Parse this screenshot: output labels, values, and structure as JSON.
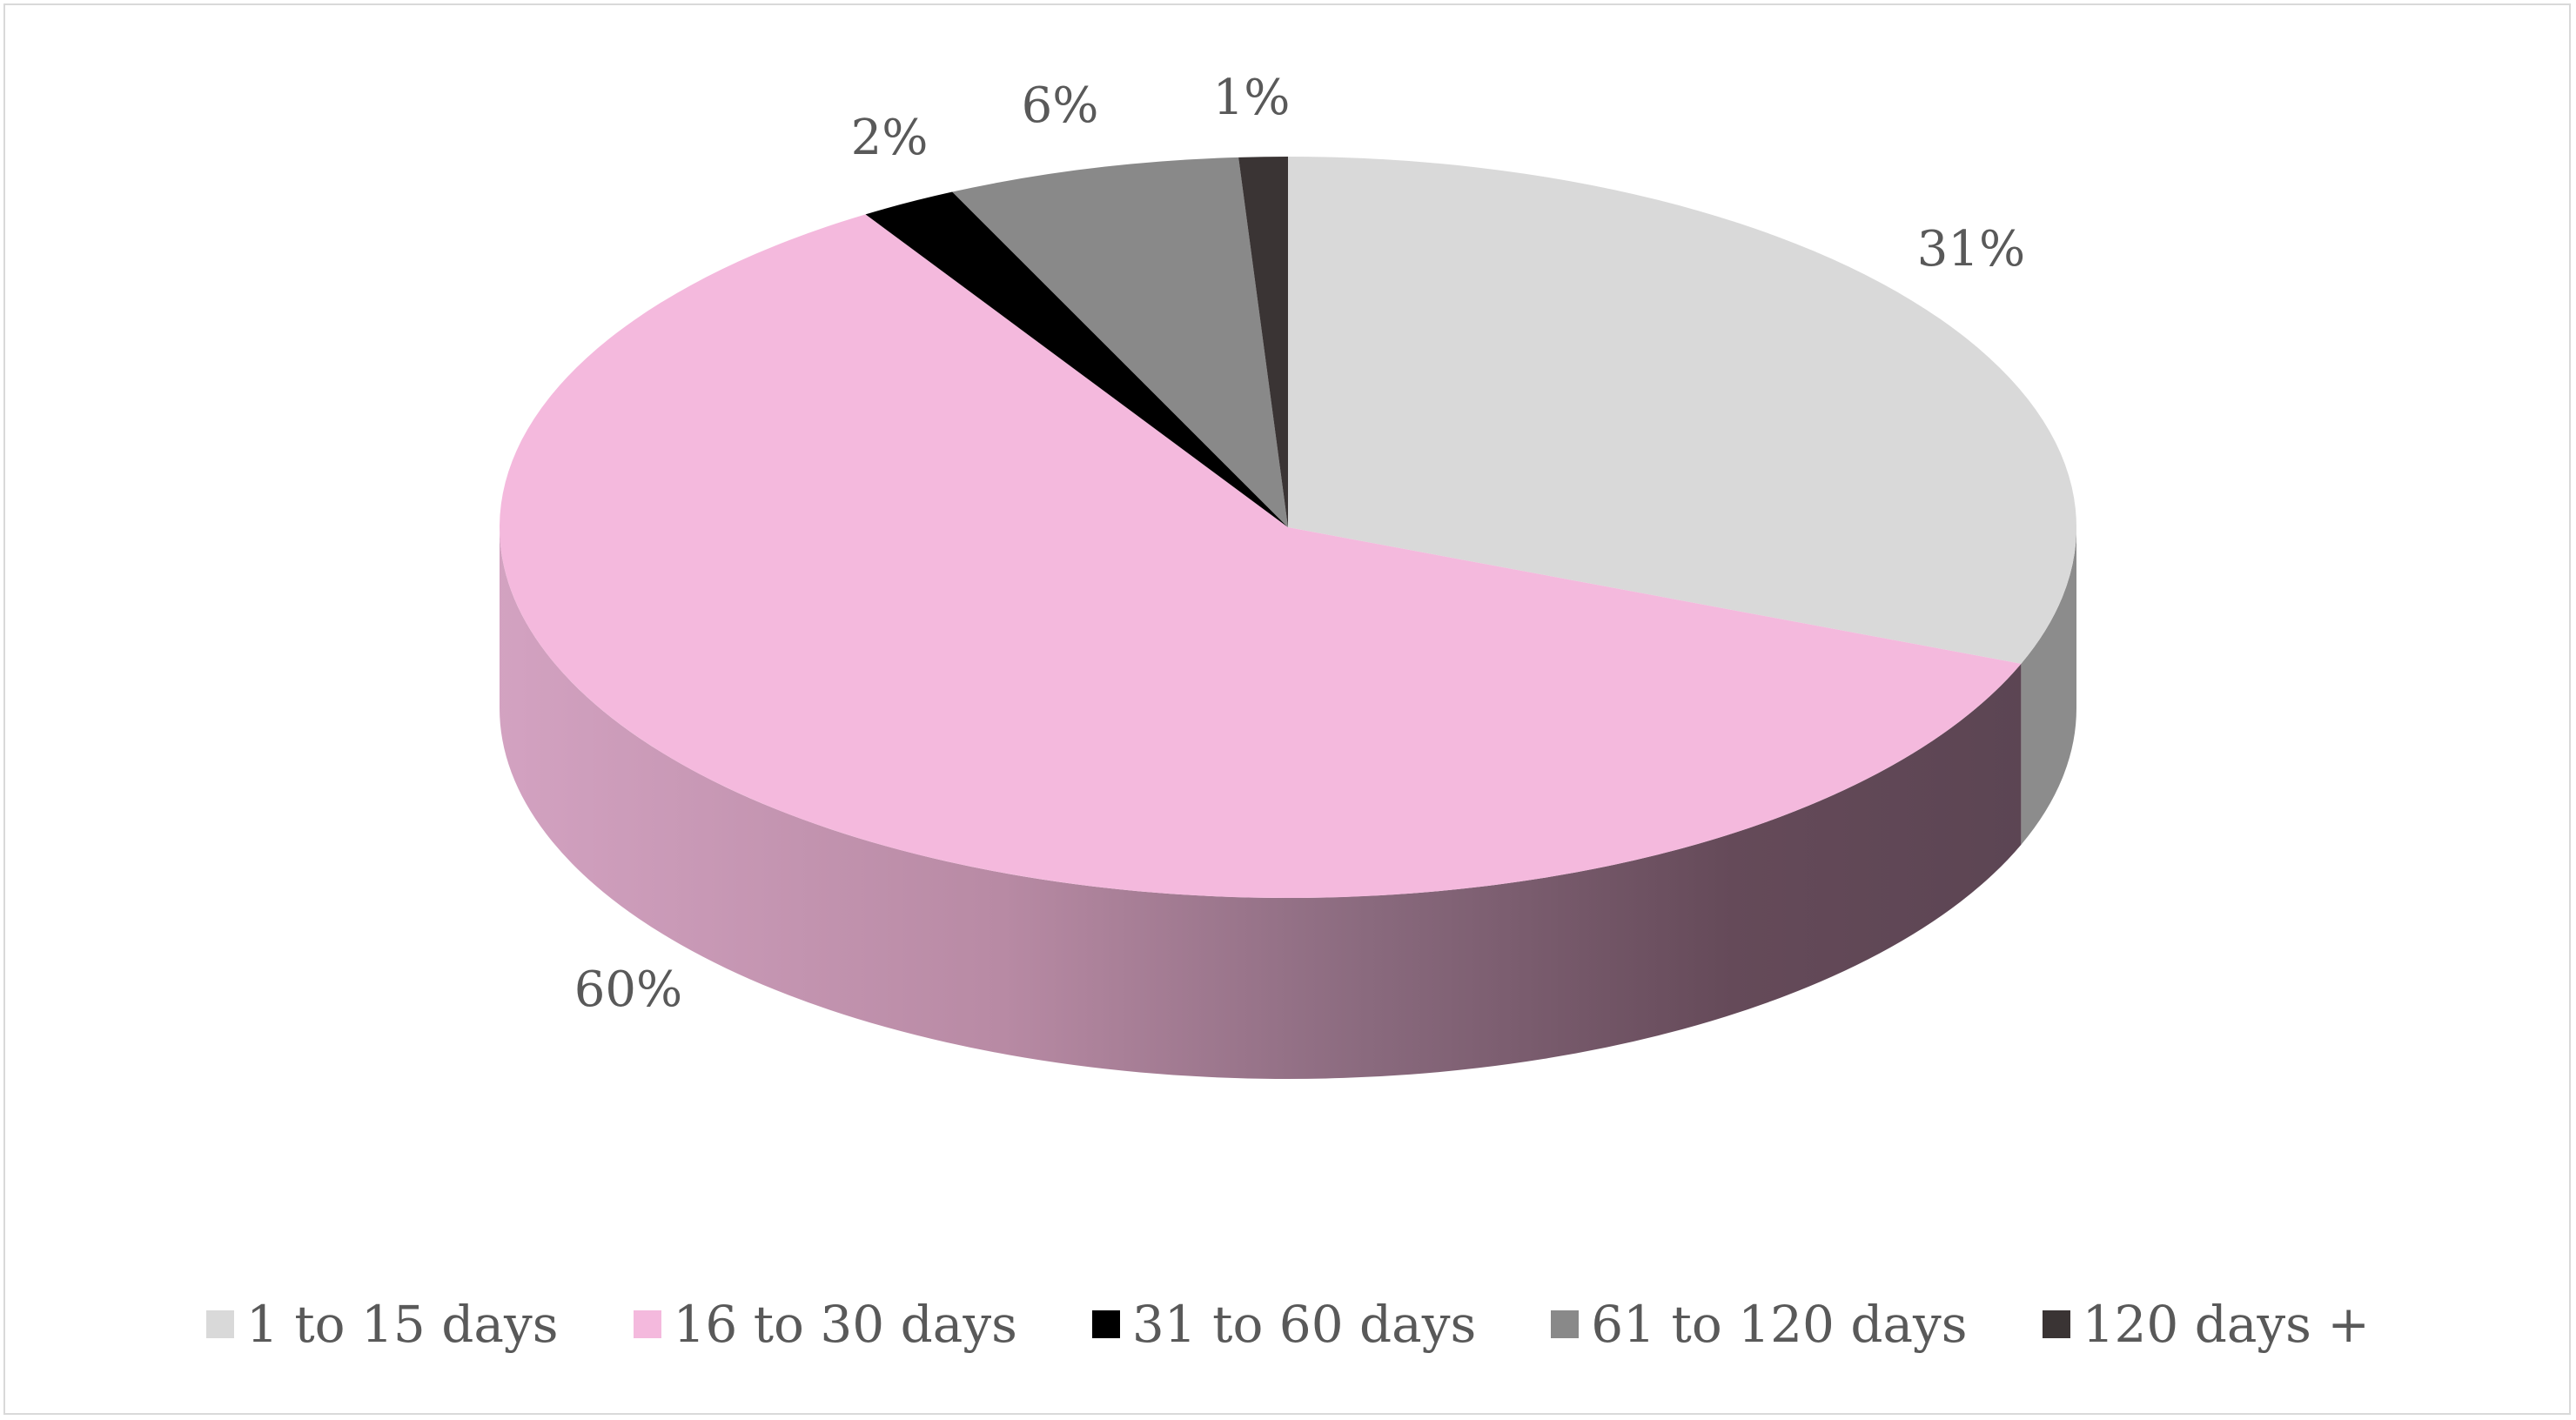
{
  "chart_data": {
    "type": "pie",
    "style": "3d",
    "categories": [
      "1 to 15 days",
      "16 to 30 days",
      "31 to 60 days",
      "61 to 120 days",
      "120 days +"
    ],
    "values": [
      31,
      60,
      2,
      6,
      1
    ],
    "labels": [
      "31%",
      "60%",
      "2%",
      "6%",
      "1%"
    ],
    "colors": [
      "#d9d9d9",
      "#f4b9dd",
      "#000000",
      "#898989",
      "#3a3434"
    ],
    "side_colors": [
      "#8c8c8c",
      "#c99ab8",
      "#000000",
      "#5e5e5e",
      "#262222"
    ],
    "legend_position": "bottom"
  }
}
